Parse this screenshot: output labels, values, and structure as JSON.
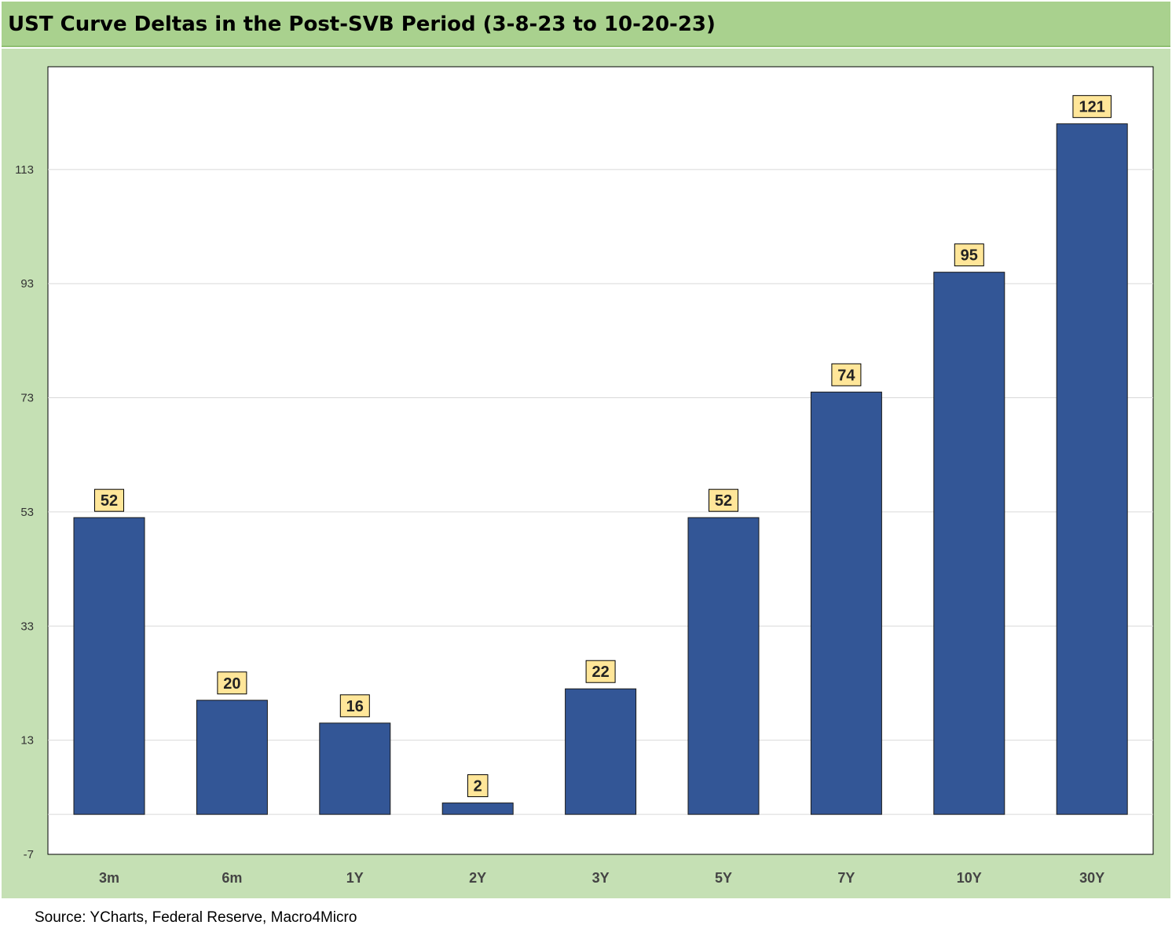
{
  "colors": {
    "title_bar": "#a9d18e",
    "panel": "#c5e0b4",
    "bar": "#335696",
    "label_box": "#ffe699",
    "plot_area": "#ffffff",
    "gridline": "#d9d9d9"
  },
  "source": "Source: YCharts, Federal Reserve, Macro4Micro",
  "chart_data": {
    "type": "bar",
    "title": "UST Curve Deltas in the Post-SVB Period (3-8-23 to 10-20-23)",
    "xlabel": "",
    "ylabel": "",
    "categories": [
      "3m",
      "6m",
      "1Y",
      "2Y",
      "3Y",
      "5Y",
      "7Y",
      "10Y",
      "30Y"
    ],
    "values": [
      52,
      20,
      16,
      2,
      22,
      52,
      74,
      95,
      121
    ],
    "data_labels": [
      "52",
      "20",
      "16",
      "2",
      "22",
      "52",
      "74",
      "95",
      "121"
    ],
    "yticks": [
      -7,
      13,
      33,
      53,
      73,
      93,
      113
    ],
    "ylim": [
      -7,
      131
    ],
    "grid": true,
    "legend": "none"
  }
}
